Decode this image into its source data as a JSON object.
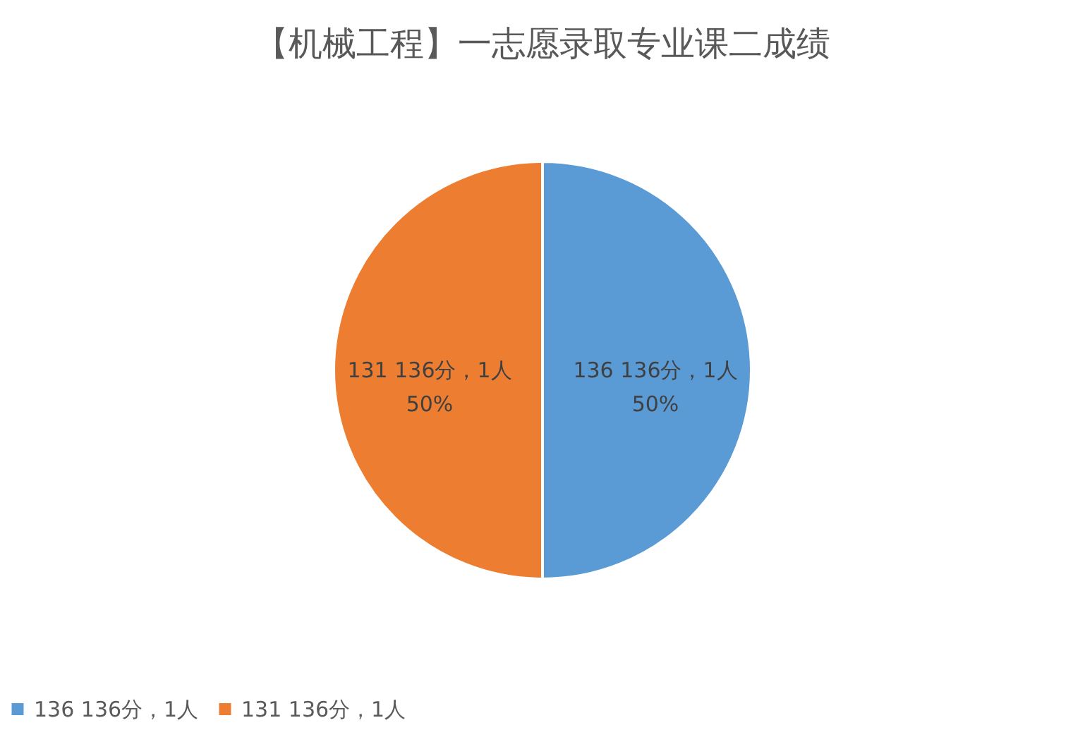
{
  "chart_data": {
    "type": "pie",
    "title": "【机械工程】一志愿录取专业课二成绩",
    "categories": [
      "136 136分，1人",
      "131 136分，1人"
    ],
    "values": [
      50,
      50
    ],
    "colors": [
      "#5b9bd5",
      "#ed7d31"
    ],
    "value_labels": [
      "50%",
      "50%"
    ],
    "legend": "bottom"
  }
}
